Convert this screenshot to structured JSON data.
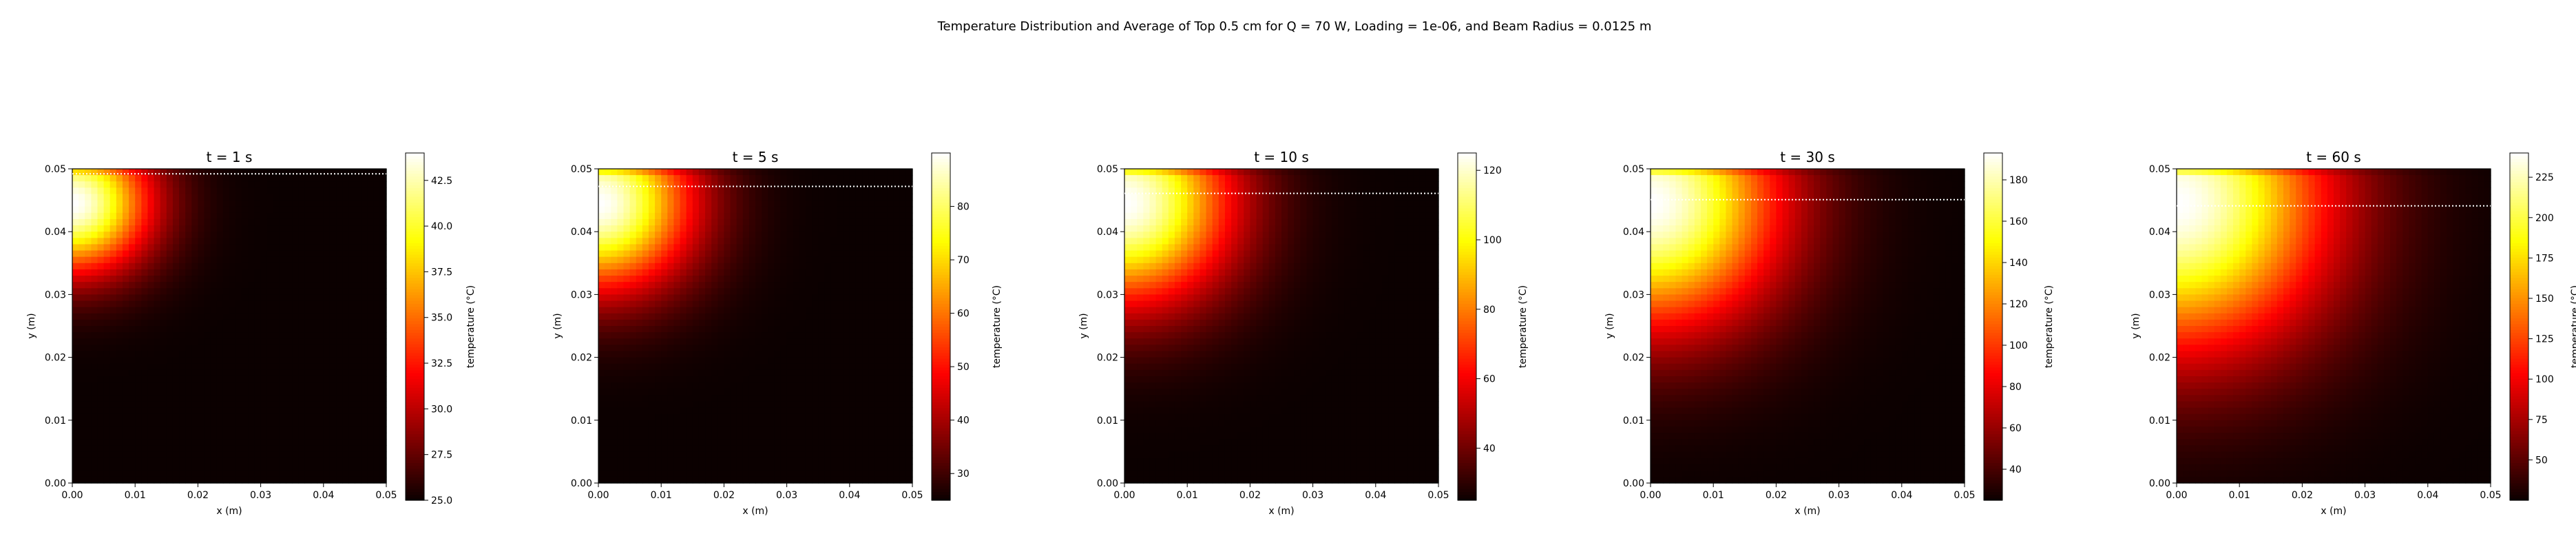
{
  "figure": {
    "title": "Temperature Distribution and Average of Top 0.5 cm for Q = 70 W, Loading = 1e-06, and Beam Radius = 0.0125 m"
  },
  "colormap": "hot",
  "chart_data": [
    {
      "type": "heatmap",
      "title": "t = 1 s",
      "xlabel": "x (m)",
      "ylabel": "y (m)",
      "xlim": [
        0.0,
        0.05
      ],
      "ylim": [
        0.0,
        0.05
      ],
      "x_ticks": [
        "0.00",
        "0.01",
        "0.02",
        "0.03",
        "0.04",
        "0.05"
      ],
      "y_ticks": [
        "0.00",
        "0.01",
        "0.02",
        "0.03",
        "0.04",
        "0.05"
      ],
      "colorbar_label": "temperature (°C)",
      "colorbar_range": [
        25.0,
        44.0
      ],
      "colorbar_ticks": [
        "25.0",
        "27.5",
        "30.0",
        "32.5",
        "35.0",
        "37.5",
        "40.0",
        "42.5"
      ],
      "avg_line_y": 0.0492,
      "grid": false
    },
    {
      "type": "heatmap",
      "title": "t = 5 s",
      "xlabel": "x (m)",
      "ylabel": "y (m)",
      "xlim": [
        0.0,
        0.05
      ],
      "ylim": [
        0.0,
        0.05
      ],
      "x_ticks": [
        "0.00",
        "0.01",
        "0.02",
        "0.03",
        "0.04",
        "0.05"
      ],
      "y_ticks": [
        "0.00",
        "0.01",
        "0.02",
        "0.03",
        "0.04",
        "0.05"
      ],
      "colorbar_label": "temperature (°C)",
      "colorbar_range": [
        25.0,
        90.0
      ],
      "colorbar_ticks": [
        "30",
        "40",
        "50",
        "60",
        "70",
        "80"
      ],
      "avg_line_y": 0.0472,
      "grid": false
    },
    {
      "type": "heatmap",
      "title": "t = 10 s",
      "xlabel": "x (m)",
      "ylabel": "y (m)",
      "xlim": [
        0.0,
        0.05
      ],
      "ylim": [
        0.0,
        0.05
      ],
      "x_ticks": [
        "0.00",
        "0.01",
        "0.02",
        "0.03",
        "0.04",
        "0.05"
      ],
      "y_ticks": [
        "0.00",
        "0.01",
        "0.02",
        "0.03",
        "0.04",
        "0.05"
      ],
      "colorbar_label": "temperature (°C)",
      "colorbar_range": [
        25.0,
        125.0
      ],
      "colorbar_ticks": [
        "40",
        "60",
        "80",
        "100",
        "120"
      ],
      "avg_line_y": 0.0461,
      "grid": false
    },
    {
      "type": "heatmap",
      "title": "t = 30 s",
      "xlabel": "x (m)",
      "ylabel": "y (m)",
      "xlim": [
        0.0,
        0.05
      ],
      "ylim": [
        0.0,
        0.05
      ],
      "x_ticks": [
        "0.00",
        "0.01",
        "0.02",
        "0.03",
        "0.04",
        "0.05"
      ],
      "y_ticks": [
        "0.00",
        "0.01",
        "0.02",
        "0.03",
        "0.04",
        "0.05"
      ],
      "colorbar_label": "temperature (°C)",
      "colorbar_range": [
        25.0,
        193.0
      ],
      "colorbar_ticks": [
        "40",
        "60",
        "80",
        "100",
        "120",
        "140",
        "160",
        "180"
      ],
      "avg_line_y": 0.0451,
      "grid": false
    },
    {
      "type": "heatmap",
      "title": "t = 60 s",
      "xlabel": "x (m)",
      "ylabel": "y (m)",
      "xlim": [
        0.0,
        0.05
      ],
      "ylim": [
        0.0,
        0.05
      ],
      "x_ticks": [
        "0.00",
        "0.01",
        "0.02",
        "0.03",
        "0.04",
        "0.05"
      ],
      "y_ticks": [
        "0.00",
        "0.01",
        "0.02",
        "0.03",
        "0.04",
        "0.05"
      ],
      "colorbar_label": "temperature (°C)",
      "colorbar_range": [
        25.0,
        240.0
      ],
      "colorbar_ticks": [
        "50",
        "75",
        "100",
        "125",
        "150",
        "175",
        "200",
        "225"
      ],
      "avg_line_y": 0.0441,
      "grid": false
    }
  ]
}
